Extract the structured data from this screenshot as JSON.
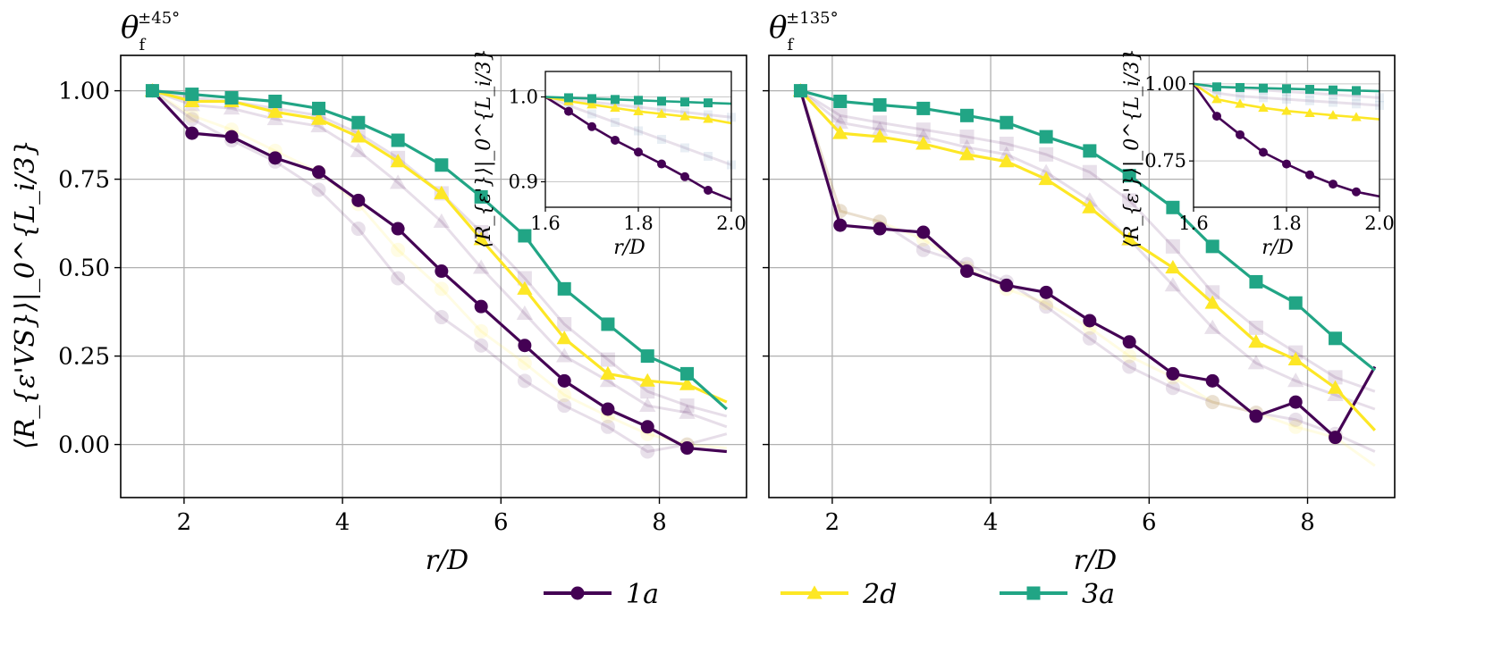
{
  "chart_data": [
    {
      "type": "line",
      "title": "θ_f^{±45°}",
      "title_main": "θ",
      "title_sub": "f",
      "title_sup": "±45°",
      "xlabel": "r/D",
      "ylabel": "⟨R_{ε'VS}⟩|_0^{L_i/3}",
      "xlim": [
        1.2,
        9.1
      ],
      "ylim": [
        -0.15,
        1.1
      ],
      "xticks": [
        "2",
        "4",
        "6",
        "8"
      ],
      "yticks": [
        "0.00",
        "0.25",
        "0.50",
        "0.75",
        "1.00"
      ],
      "series": [
        {
          "name": "1a",
          "color": "#440154",
          "marker": "circle",
          "x": [
            1.6,
            2.1,
            2.6,
            3.15,
            3.7,
            4.2,
            4.7,
            5.25,
            5.75,
            6.3,
            6.8,
            7.35,
            7.85,
            8.35,
            8.85
          ],
          "y": [
            1.0,
            0.88,
            0.87,
            0.81,
            0.77,
            0.69,
            0.61,
            0.49,
            0.39,
            0.28,
            0.18,
            0.1,
            0.05,
            -0.01,
            -0.02
          ]
        },
        {
          "name": "2d",
          "color": "#fde725",
          "marker": "triangle",
          "x": [
            1.6,
            2.1,
            2.6,
            3.15,
            3.7,
            4.2,
            4.7,
            5.25,
            5.75,
            6.3,
            6.8,
            7.35,
            7.85,
            8.35,
            8.85
          ],
          "y": [
            1.0,
            0.97,
            0.97,
            0.94,
            0.92,
            0.87,
            0.8,
            0.71,
            0.58,
            0.44,
            0.3,
            0.2,
            0.18,
            0.17,
            0.12
          ]
        },
        {
          "name": "3a",
          "color": "#21a585",
          "marker": "square",
          "x": [
            1.6,
            2.1,
            2.6,
            3.15,
            3.7,
            4.2,
            4.7,
            5.25,
            5.75,
            6.3,
            6.8,
            7.35,
            7.85,
            8.35,
            8.85
          ],
          "y": [
            1.0,
            0.99,
            0.98,
            0.97,
            0.95,
            0.91,
            0.86,
            0.79,
            0.7,
            0.59,
            0.44,
            0.34,
            0.25,
            0.2,
            0.1
          ]
        }
      ],
      "faded_series": [
        {
          "marker": "circle",
          "color": "#440154",
          "y": [
            1.0,
            0.92,
            0.86,
            0.8,
            0.72,
            0.61,
            0.47,
            0.36,
            0.28,
            0.18,
            0.11,
            0.05,
            -0.02,
            0.0,
            0.03
          ]
        },
        {
          "marker": "circle",
          "color": "#fde725",
          "y": [
            1.0,
            0.93,
            0.89,
            0.83,
            0.77,
            0.68,
            0.55,
            0.44,
            0.32,
            0.23,
            0.14,
            0.08,
            0.03,
            0.0,
            -0.01
          ]
        },
        {
          "marker": "triangle",
          "color": "#440154",
          "y": [
            1.0,
            0.96,
            0.95,
            0.92,
            0.9,
            0.83,
            0.74,
            0.63,
            0.5,
            0.37,
            0.25,
            0.18,
            0.11,
            0.09,
            0.05
          ]
        },
        {
          "marker": "square",
          "color": "#440154",
          "y": [
            1.0,
            0.98,
            0.97,
            0.95,
            0.93,
            0.88,
            0.81,
            0.71,
            0.6,
            0.47,
            0.34,
            0.24,
            0.15,
            0.11,
            0.08
          ]
        }
      ],
      "inset": {
        "xlabel": "r/D",
        "ylabel": "⟨R_{ε'}⟩|_0^{L_i/3}",
        "xlim": [
          1.6,
          2.0
        ],
        "ylim": [
          0.87,
          1.03
        ],
        "xticks": [
          "1.6",
          "1.8",
          "2.0"
        ],
        "yticks": [
          "0.9",
          "1.0"
        ],
        "x": [
          1.6,
          1.65,
          1.7,
          1.75,
          1.8,
          1.85,
          1.9,
          1.95,
          2.0
        ],
        "series": [
          {
            "name": "1a",
            "y": [
              1.0,
              0.983,
              0.965,
              0.949,
              0.935,
              0.921,
              0.906,
              0.89,
              0.879
            ]
          },
          {
            "name": "2d",
            "y": [
              1.0,
              0.995,
              0.991,
              0.987,
              0.983,
              0.98,
              0.977,
              0.974,
              0.969
            ]
          },
          {
            "name": "3a",
            "y": [
              1.0,
              0.999,
              0.998,
              0.997,
              0.996,
              0.995,
              0.994,
              0.993,
              0.992
            ]
          }
        ],
        "faded": [
          {
            "y": [
              1.0,
              0.99,
              0.98,
              0.97,
              0.96,
              0.95,
              0.94,
              0.93,
              0.92
            ]
          },
          {
            "y": [
              1.0,
              0.997,
              0.994,
              0.991,
              0.988,
              0.985,
              0.982,
              0.979,
              0.976
            ]
          }
        ]
      }
    },
    {
      "type": "line",
      "title": "θ_f^{±135°}",
      "title_main": "θ",
      "title_sub": "f",
      "title_sup": "±135°",
      "xlabel": "r/D",
      "ylabel": "",
      "xlim": [
        1.2,
        9.1
      ],
      "ylim": [
        -0.15,
        1.1
      ],
      "xticks": [
        "2",
        "4",
        "6",
        "8"
      ],
      "yticks": [],
      "series": [
        {
          "name": "1a",
          "color": "#440154",
          "marker": "circle",
          "x": [
            1.6,
            2.1,
            2.6,
            3.15,
            3.7,
            4.2,
            4.7,
            5.25,
            5.75,
            6.3,
            6.8,
            7.35,
            7.85,
            8.35,
            8.85
          ],
          "y": [
            1.0,
            0.62,
            0.61,
            0.6,
            0.49,
            0.45,
            0.43,
            0.35,
            0.29,
            0.2,
            0.18,
            0.08,
            0.12,
            0.02,
            0.22
          ]
        },
        {
          "name": "2d",
          "color": "#fde725",
          "marker": "triangle",
          "x": [
            1.6,
            2.1,
            2.6,
            3.15,
            3.7,
            4.2,
            4.7,
            5.25,
            5.75,
            6.3,
            6.8,
            7.35,
            7.85,
            8.35,
            8.85
          ],
          "y": [
            1.0,
            0.88,
            0.87,
            0.85,
            0.82,
            0.8,
            0.75,
            0.67,
            0.58,
            0.5,
            0.4,
            0.29,
            0.24,
            0.16,
            0.04
          ]
        },
        {
          "name": "3a",
          "color": "#21a585",
          "marker": "square",
          "x": [
            1.6,
            2.1,
            2.6,
            3.15,
            3.7,
            4.2,
            4.7,
            5.25,
            5.75,
            6.3,
            6.8,
            7.35,
            7.85,
            8.35,
            8.85
          ],
          "y": [
            1.0,
            0.97,
            0.96,
            0.95,
            0.93,
            0.91,
            0.87,
            0.83,
            0.76,
            0.67,
            0.56,
            0.46,
            0.4,
            0.3,
            0.21
          ]
        }
      ],
      "faded_series": [
        {
          "marker": "circle",
          "color": "#440154",
          "y": [
            1.0,
            0.66,
            0.63,
            0.55,
            0.51,
            0.46,
            0.39,
            0.3,
            0.22,
            0.16,
            0.12,
            0.09,
            0.07,
            0.03,
            -0.02
          ]
        },
        {
          "marker": "circle",
          "color": "#fde725",
          "y": [
            1.0,
            0.66,
            0.63,
            0.58,
            0.5,
            0.44,
            0.4,
            0.33,
            0.25,
            0.19,
            0.12,
            0.09,
            0.05,
            0.02,
            -0.06
          ]
        },
        {
          "marker": "triangle",
          "color": "#440154",
          "y": [
            1.0,
            0.91,
            0.89,
            0.87,
            0.84,
            0.82,
            0.77,
            0.69,
            0.58,
            0.45,
            0.33,
            0.23,
            0.18,
            0.14,
            0.1
          ]
        },
        {
          "marker": "square",
          "color": "#440154",
          "y": [
            1.0,
            0.93,
            0.91,
            0.89,
            0.87,
            0.85,
            0.82,
            0.77,
            0.69,
            0.56,
            0.43,
            0.33,
            0.26,
            0.19,
            0.15
          ]
        }
      ],
      "inset": {
        "xlabel": "r/D",
        "ylabel": "⟨R_{ε'}⟩|_0^{L_i/3}",
        "xlim": [
          1.6,
          2.0
        ],
        "ylim": [
          0.6,
          1.04
        ],
        "xticks": [
          "1.6",
          "1.8",
          "2.0"
        ],
        "yticks": [
          "0.75",
          "1.00"
        ],
        "x": [
          1.6,
          1.65,
          1.7,
          1.75,
          1.8,
          1.85,
          1.9,
          1.95,
          2.0
        ],
        "series": [
          {
            "name": "1a",
            "y": [
              1.0,
              0.895,
              0.835,
              0.778,
              0.74,
              0.705,
              0.675,
              0.65,
              0.635
            ]
          },
          {
            "name": "2d",
            "y": [
              1.0,
              0.95,
              0.935,
              0.922,
              0.912,
              0.905,
              0.898,
              0.892,
              0.885
            ]
          },
          {
            "name": "3a",
            "y": [
              1.0,
              0.99,
              0.988,
              0.986,
              0.984,
              0.982,
              0.98,
              0.978,
              0.976
            ]
          }
        ],
        "faded": [
          {
            "y": [
              1.0,
              0.97,
              0.96,
              0.955,
              0.95,
              0.945,
              0.94,
              0.935,
              0.93
            ]
          },
          {
            "y": [
              1.0,
              0.99,
              0.985,
              0.98,
              0.975,
              0.97,
              0.965,
              0.96,
              0.955
            ]
          }
        ]
      }
    }
  ],
  "legend": {
    "position": "bottom-center",
    "items": [
      {
        "label": "1a",
        "color": "#440154",
        "marker": "circle"
      },
      {
        "label": "2d",
        "color": "#fde725",
        "marker": "triangle"
      },
      {
        "label": "3a",
        "color": "#21a585",
        "marker": "square"
      }
    ]
  }
}
